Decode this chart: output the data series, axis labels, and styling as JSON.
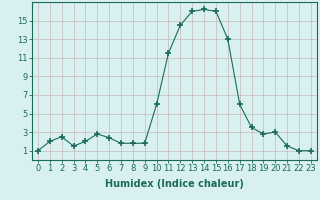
{
  "x": [
    0,
    1,
    2,
    3,
    4,
    5,
    6,
    7,
    8,
    9,
    10,
    11,
    12,
    13,
    14,
    15,
    16,
    17,
    18,
    19,
    20,
    21,
    22,
    23
  ],
  "y": [
    1,
    2,
    2.5,
    1.5,
    2,
    2.8,
    2.4,
    1.8,
    1.8,
    1.8,
    6,
    11.5,
    14.5,
    16,
    16.2,
    16,
    13,
    6,
    3.5,
    2.8,
    3,
    1.5,
    1,
    1
  ],
  "line_color": "#1a6b5a",
  "marker": "+",
  "marker_size": 4,
  "marker_linewidth": 1.2,
  "bg_color": "#d8f0f0",
  "grid_color": "#c8b8b8",
  "xlabel": "Humidex (Indice chaleur)",
  "xlim": [
    -0.5,
    23.5
  ],
  "ylim": [
    0,
    17
  ],
  "yticks": [
    1,
    3,
    5,
    7,
    9,
    11,
    13,
    15
  ],
  "xticks": [
    0,
    1,
    2,
    3,
    4,
    5,
    6,
    7,
    8,
    9,
    10,
    11,
    12,
    13,
    14,
    15,
    16,
    17,
    18,
    19,
    20,
    21,
    22,
    23
  ],
  "tick_label_size": 6,
  "xlabel_size": 7
}
